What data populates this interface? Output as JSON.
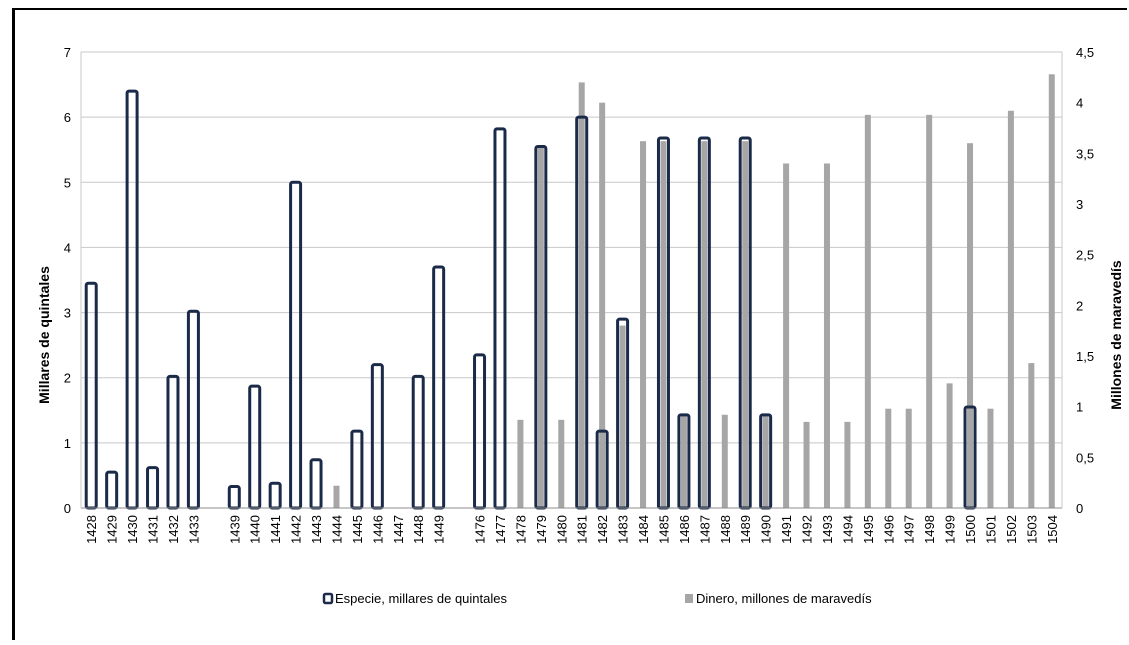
{
  "chart_data": {
    "type": "bar",
    "categories": [
      "1428",
      "1429",
      "1430",
      "1431",
      "1432",
      "1433",
      "",
      "1439",
      "1440",
      "1441",
      "1442",
      "1443",
      "1444",
      "1445",
      "1446",
      "1447",
      "1448",
      "1449",
      "",
      "1476",
      "1477",
      "1478",
      "1479",
      "1480",
      "1481",
      "1482",
      "1483",
      "1484",
      "1485",
      "1486",
      "1487",
      "1488",
      "1489",
      "1490",
      "1491",
      "1492",
      "1493",
      "1494",
      "1495",
      "1496",
      "1497",
      "1498",
      "1499",
      "1500",
      "1501",
      "1502",
      "1503",
      "1504"
    ],
    "series": [
      {
        "name": "Especie, millares de quintales",
        "axis": "left",
        "color": "#1a2a48",
        "values": [
          3.45,
          0.55,
          6.4,
          0.62,
          2.02,
          3.02,
          null,
          0.33,
          1.87,
          0.38,
          5.0,
          0.74,
          null,
          1.18,
          2.2,
          null,
          2.02,
          3.7,
          null,
          2.35,
          5.82,
          null,
          5.55,
          null,
          6.0,
          1.18,
          2.9,
          null,
          5.68,
          1.43,
          5.68,
          null,
          5.68,
          1.43,
          null,
          null,
          null,
          null,
          null,
          null,
          null,
          null,
          null,
          1.55,
          null,
          null,
          null,
          null
        ]
      },
      {
        "name": "Dinero, millones de maravedís",
        "axis": "right",
        "color": "#a6a6a6",
        "values": [
          null,
          null,
          null,
          null,
          null,
          null,
          null,
          null,
          null,
          null,
          null,
          null,
          0.22,
          null,
          null,
          null,
          null,
          null,
          null,
          null,
          null,
          0.87,
          3.57,
          0.87,
          4.2,
          4.0,
          1.8,
          3.62,
          3.62,
          0.92,
          3.62,
          0.92,
          3.62,
          0.92,
          3.4,
          0.85,
          3.4,
          0.85,
          3.88,
          0.98,
          0.98,
          3.88,
          1.23,
          3.6,
          0.98,
          3.92,
          1.43,
          4.28
        ]
      }
    ],
    "ylabel": "Millares de quintales",
    "y2label": "Millones de maravedís",
    "ylim": [
      0,
      7
    ],
    "y2lim": [
      0,
      4.5
    ],
    "yticks": [
      "0",
      "1",
      "2",
      "3",
      "4",
      "5",
      "6",
      "7"
    ],
    "y2ticks": [
      "0",
      "0,5",
      "1",
      "1,5",
      "2",
      "2,5",
      "3",
      "3,5",
      "4",
      "4,5"
    ],
    "grid": true,
    "legend_position": "bottom"
  }
}
